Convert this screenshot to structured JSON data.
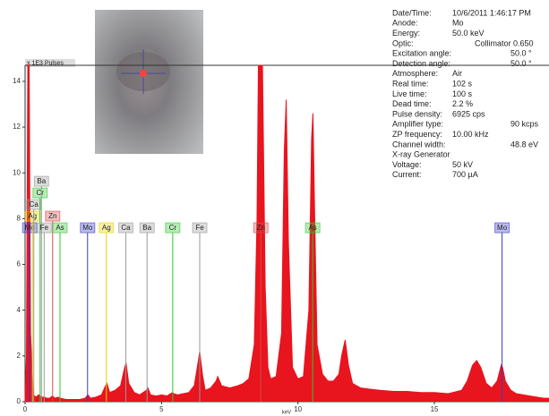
{
  "chart_data": {
    "type": "area",
    "y_axis_label": "x 1E3 Pulses",
    "x_axis_label": "keV",
    "color": "#e8141e",
    "xlim": [
      0,
      19.2
    ],
    "ylim": [
      0,
      14.7
    ],
    "xticks": [
      0,
      5,
      10,
      15
    ],
    "yticks": [
      0,
      2,
      4,
      6,
      8,
      10,
      12,
      14
    ],
    "x": [
      0,
      0.05,
      0.1,
      0.15,
      0.2,
      0.3,
      0.4,
      0.5,
      0.6,
      0.7,
      0.8,
      0.9,
      1.0,
      1.1,
      1.2,
      1.3,
      1.5,
      1.7,
      2.0,
      2.2,
      2.3,
      2.4,
      2.6,
      2.8,
      2.95,
      3.0,
      3.1,
      3.3,
      3.5,
      3.65,
      3.7,
      3.8,
      4.0,
      4.2,
      4.45,
      4.5,
      4.6,
      4.8,
      5.0,
      5.2,
      5.4,
      5.45,
      5.6,
      5.8,
      6.0,
      6.2,
      6.35,
      6.4,
      6.5,
      6.6,
      6.8,
      7.0,
      7.06,
      7.2,
      7.5,
      7.8,
      8.0,
      8.2,
      8.4,
      8.5,
      8.55,
      8.6,
      8.65,
      8.7,
      8.8,
      8.9,
      9.0,
      9.2,
      9.4,
      9.5,
      9.57,
      9.65,
      9.8,
      10.0,
      10.2,
      10.4,
      10.5,
      10.55,
      10.6,
      10.7,
      10.9,
      11.1,
      11.3,
      11.5,
      11.6,
      11.73,
      11.85,
      12.0,
      12.3,
      12.6,
      13.0,
      13.5,
      14.0,
      14.5,
      15.0,
      15.5,
      16.0,
      16.2,
      16.4,
      16.55,
      16.7,
      16.9,
      17.1,
      17.3,
      17.45,
      17.5,
      17.6,
      17.8,
      18.0,
      18.5,
      19.0,
      19.2
    ],
    "values": [
      0,
      2,
      14.7,
      14.7,
      3,
      0.3,
      0.2,
      0.3,
      0.2,
      0.2,
      0.15,
      0.15,
      0.25,
      0.15,
      0.2,
      0.15,
      0.1,
      0.1,
      0.1,
      0.15,
      0.3,
      0.15,
      0.2,
      0.3,
      0.7,
      0.8,
      0.4,
      0.5,
      0.7,
      1.5,
      1.7,
      0.8,
      0.4,
      0.3,
      0.5,
      0.6,
      0.3,
      0.25,
      0.3,
      0.25,
      0.4,
      0.35,
      0.3,
      0.35,
      0.4,
      0.7,
      1.8,
      2.2,
      1.2,
      0.5,
      0.6,
      0.9,
      1.1,
      0.7,
      0.6,
      0.7,
      0.8,
      1.0,
      2.5,
      8,
      14.7,
      14.7,
      14.7,
      14.7,
      5,
      1.5,
      1.0,
      1.1,
      3,
      11,
      13.2,
      7,
      1.5,
      1.0,
      1.1,
      4,
      11.5,
      12.6,
      9,
      2.5,
      1.2,
      0.9,
      0.9,
      1.2,
      2.0,
      2.7,
      1.6,
      0.8,
      0.6,
      0.55,
      0.5,
      0.45,
      0.45,
      0.4,
      0.4,
      0.35,
      0.5,
      0.9,
      1.6,
      1.8,
      1.5,
      0.8,
      0.6,
      0.9,
      1.6,
      1.5,
      0.9,
      0.5,
      0.35,
      0.25,
      0.15,
      0.15
    ],
    "markers": [
      {
        "label": "Mo",
        "x": 0.17,
        "color": "#3a3acc"
      },
      {
        "label": "Ag",
        "x": 0.27,
        "color": "#e6d200"
      },
      {
        "label": "Ca",
        "x": 0.32,
        "color": "#9a9a9a"
      },
      {
        "label": "Cr",
        "x": 0.55,
        "color": "#2ec82e"
      },
      {
        "label": "Ba",
        "x": 0.6,
        "color": "#9a9a9a"
      },
      {
        "label": "Fe",
        "x": 0.7,
        "color": "#9a9a9a"
      },
      {
        "label": "Zn",
        "x": 1.01,
        "color": "#d84848"
      },
      {
        "label": "As",
        "x": 1.28,
        "color": "#2ec82e"
      },
      {
        "label": "Mo",
        "x": 2.29,
        "color": "#3a3acc"
      },
      {
        "label": "Ag",
        "x": 2.98,
        "color": "#e6d200"
      },
      {
        "label": "Ca",
        "x": 3.69,
        "color": "#9a9a9a"
      },
      {
        "label": "Ba",
        "x": 4.47,
        "color": "#9a9a9a"
      },
      {
        "label": "Cr",
        "x": 5.41,
        "color": "#2ec82e"
      },
      {
        "label": "Fe",
        "x": 6.4,
        "color": "#9a9a9a"
      },
      {
        "label": "Zn",
        "x": 8.64,
        "color": "#d84848"
      },
      {
        "label": "As",
        "x": 10.54,
        "color": "#2ec82e"
      },
      {
        "label": "Mo",
        "x": 17.48,
        "color": "#3a3acc"
      }
    ],
    "info": [
      [
        "Date/Time:",
        "10/6/2011 1:46:17 PM"
      ],
      [
        "Anode:",
        "Mo"
      ],
      [
        "Energy:",
        "50.0 keV"
      ],
      [
        "Optic:",
        "Collimator 0.650"
      ],
      [
        "Excitation angle:",
        "50.0 °"
      ],
      [
        "Detection angle:",
        "50.0 °"
      ],
      [
        "Atmosphere:",
        "Air"
      ],
      [
        "Real time:",
        "102 s"
      ],
      [
        "Live time:",
        "100 s"
      ],
      [
        "Dead time:",
        "2.2 %"
      ],
      [
        "Pulse density:",
        "6925 cps"
      ],
      [
        "Amplifier type:",
        "90 kcps"
      ],
      [
        "ZP frequency:",
        "10.00 kHz"
      ],
      [
        "Channel width:",
        "48.8 eV"
      ],
      [
        "X-ray Generator",
        ""
      ],
      [
        "Voltage:",
        "50 kV"
      ],
      [
        "Current:",
        "700 µA"
      ]
    ]
  }
}
